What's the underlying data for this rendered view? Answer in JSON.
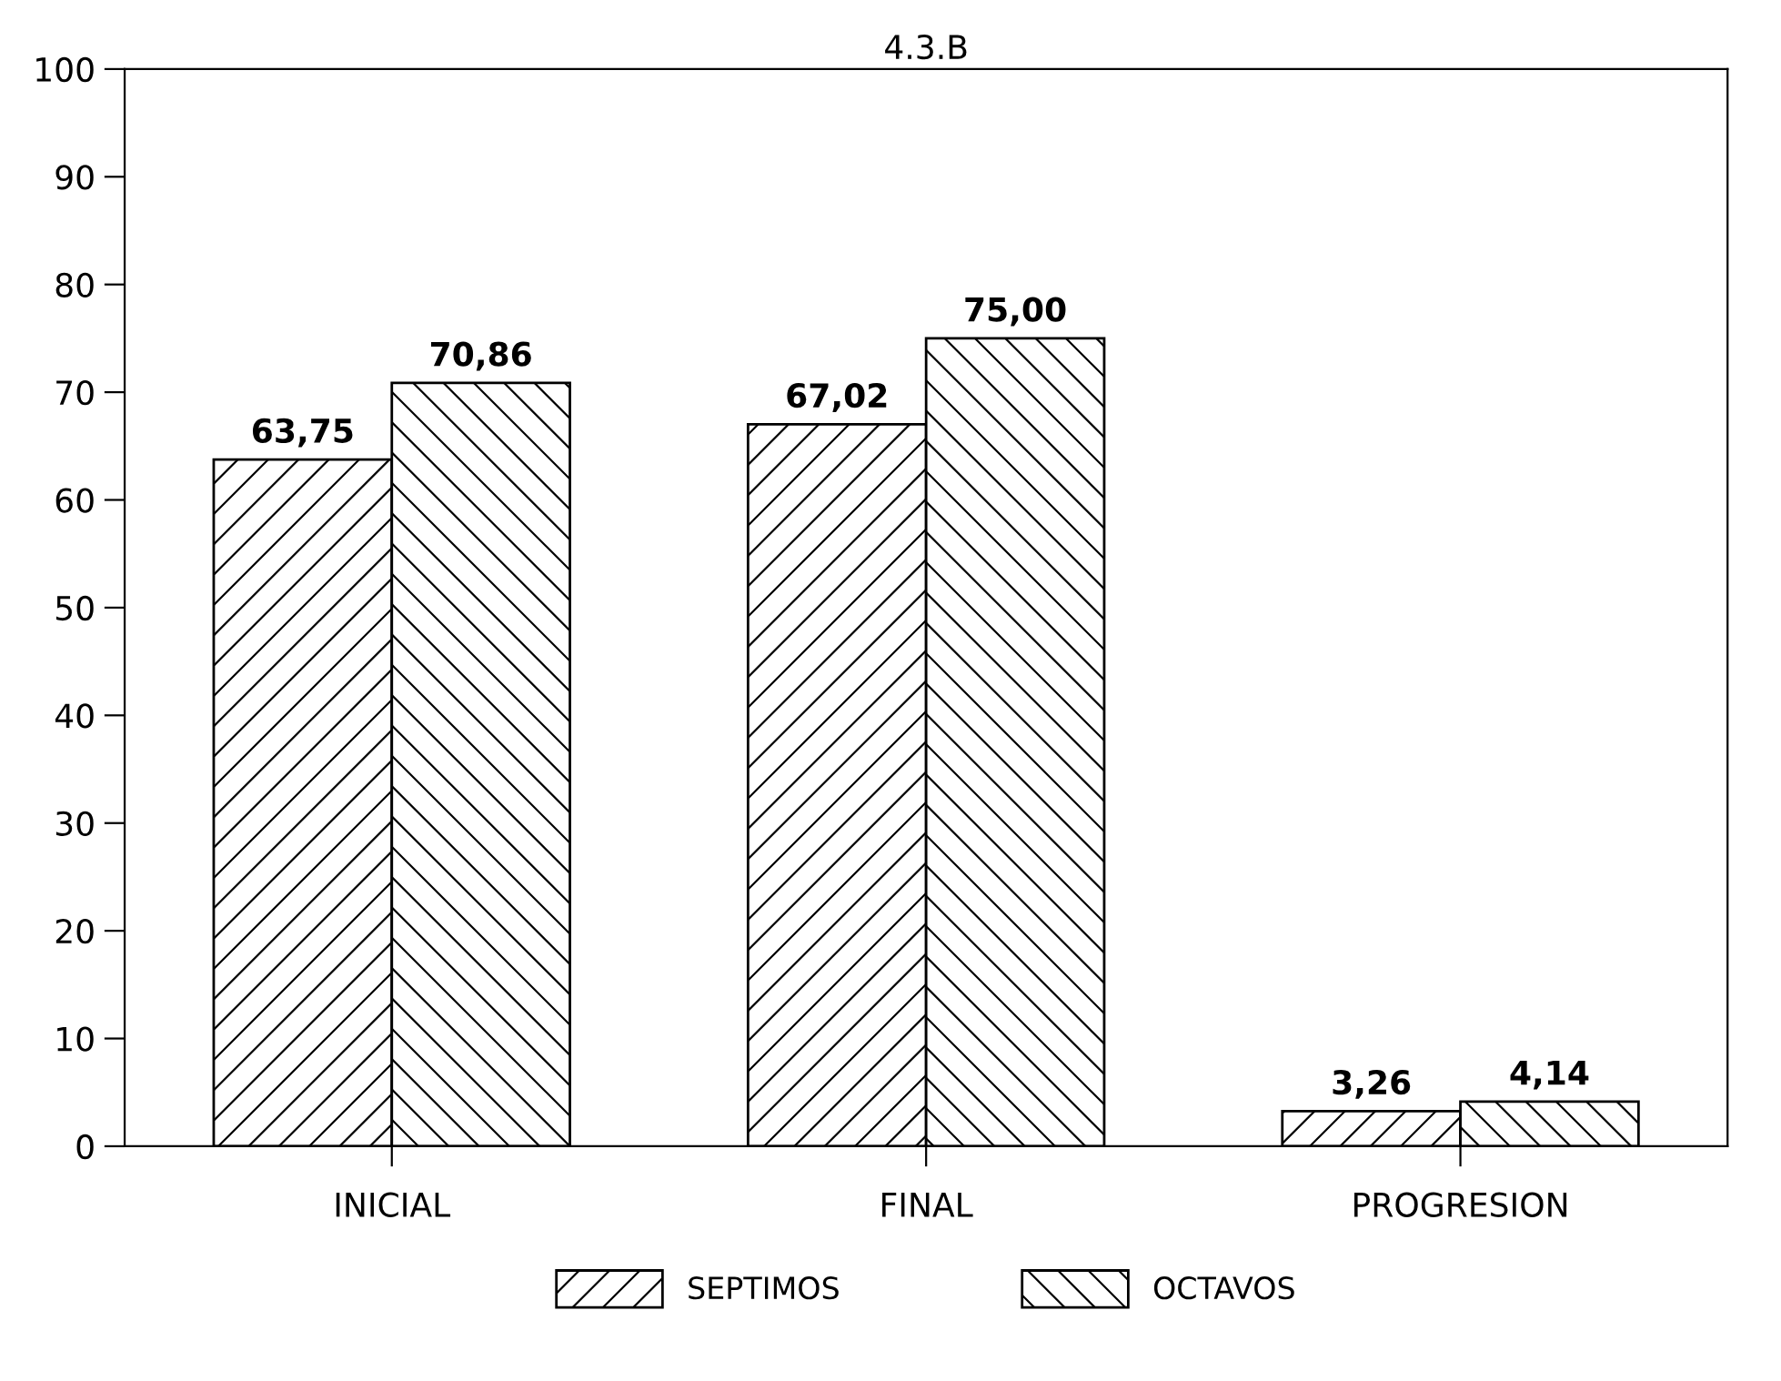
{
  "chart_data": {
    "type": "bar",
    "title": "4.3.B",
    "categories": [
      "INICIAL",
      "FINAL",
      "PROGRESION"
    ],
    "series": [
      {
        "name": "SEPTIMOS",
        "color": "#000000",
        "values": [
          63.75,
          67.02,
          3.26
        ],
        "value_labels": [
          "63,75",
          "67,02",
          "3,26"
        ]
      },
      {
        "name": "OCTAVOS",
        "color": "#000000",
        "values": [
          70.86,
          75.0,
          4.14
        ],
        "value_labels": [
          "70,86",
          "75,00",
          "4,14"
        ]
      }
    ],
    "ylim": [
      0,
      100
    ],
    "yticks": [
      0,
      10,
      20,
      30,
      40,
      50,
      60,
      70,
      80,
      90,
      100
    ],
    "grid": false,
    "legend": "bottom"
  }
}
